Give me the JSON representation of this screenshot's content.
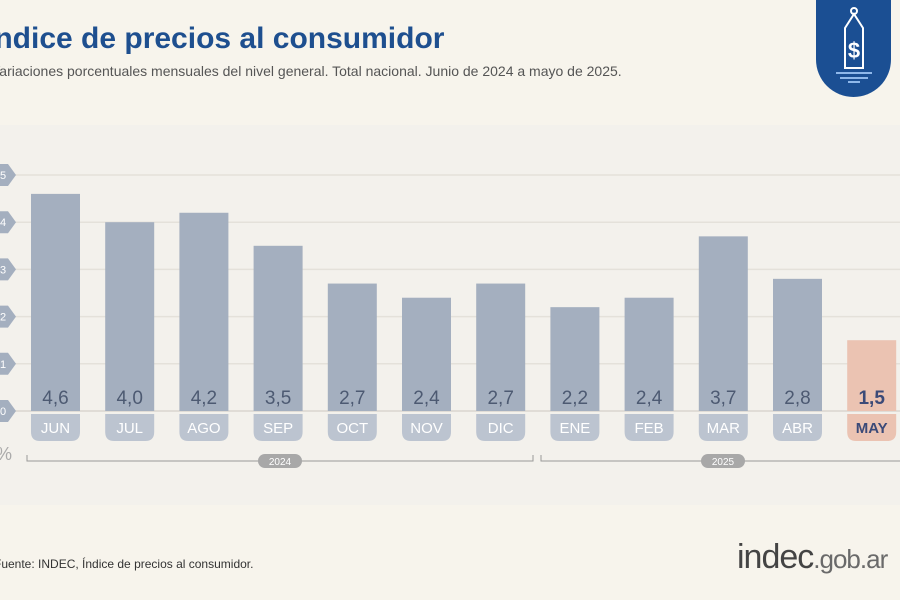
{
  "header": {
    "title": "Índice de precios al consumidor",
    "subtitle": "Variaciones porcentuales mensuales del nivel general. Total nacional. Junio de 2024 a mayo de 2025."
  },
  "badge": {
    "icon": "price-tag-dollar-icon",
    "color": "#1b4f93"
  },
  "chart_data": {
    "type": "bar",
    "categories": [
      "JUN",
      "JUL",
      "AGO",
      "SEP",
      "OCT",
      "NOV",
      "DIC",
      "ENE",
      "FEB",
      "MAR",
      "ABR",
      "MAY"
    ],
    "values": [
      4.6,
      4.0,
      4.2,
      3.5,
      2.7,
      2.4,
      2.7,
      2.2,
      2.4,
      3.7,
      2.8,
      1.5
    ],
    "value_labels": [
      "4,6",
      "4,0",
      "4,2",
      "3,5",
      "2,7",
      "2,4",
      "2,7",
      "2,2",
      "2,4",
      "3,7",
      "2,8",
      "1,5"
    ],
    "yticks": [
      "0",
      "1",
      "2",
      "3",
      "4",
      "5"
    ],
    "ylabel": "%",
    "ylim": [
      0,
      5
    ],
    "grid": true,
    "groups": [
      {
        "label": "2024",
        "from": "JUN",
        "to": "DIC"
      },
      {
        "label": "2025",
        "from": "ENE",
        "to": "MAY"
      }
    ],
    "colors": {
      "bar": "#a4afbf",
      "highlight": "#ebc3b2",
      "highlight_text": "#3b4a78"
    }
  },
  "footer": {
    "source": "Fuente: INDEC, Índice de precios al consumidor.",
    "logo_main": "indec",
    "logo_suffix": ".gob.ar"
  }
}
